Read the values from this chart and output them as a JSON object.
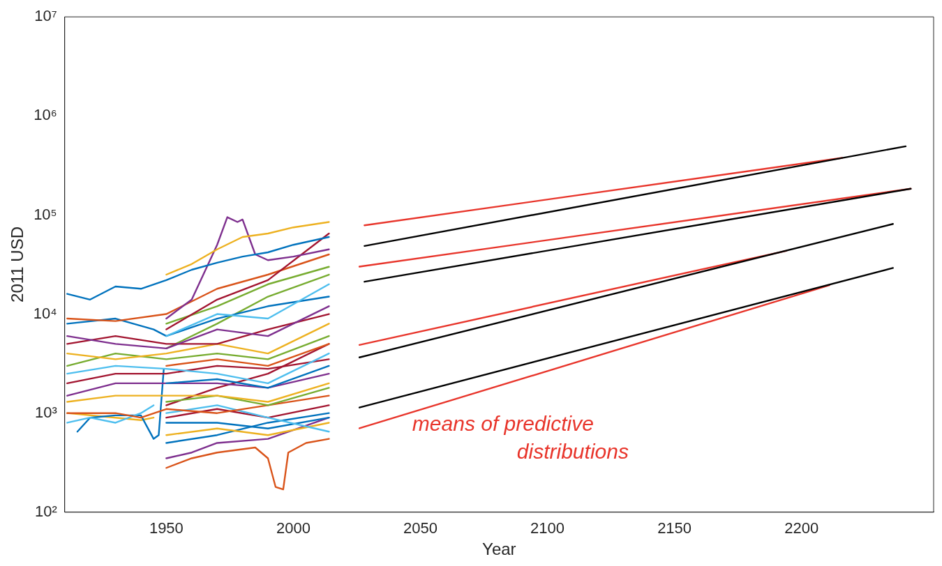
{
  "chart_data": {
    "type": "line",
    "xlabel": "Year",
    "ylabel": "2011 USD",
    "log": "y",
    "grid": false,
    "legend": false,
    "marker": "none",
    "line_style": "solid",
    "xlim": [
      1910,
      2252
    ],
    "xticks": [
      1950,
      2000,
      2050,
      2100,
      2150,
      2200
    ],
    "ylim": [
      100,
      10000000
    ],
    "yticks": [
      {
        "value": 100,
        "label": "10²"
      },
      {
        "value": 1000,
        "label": "10³"
      },
      {
        "value": 10000,
        "label": "10⁴"
      },
      {
        "value": 100000,
        "label": "10⁵"
      },
      {
        "value": 1000000,
        "label": "10⁶"
      },
      {
        "value": 10000000,
        "label": "10⁷"
      }
    ],
    "annotations": [
      "means of predictive distributions"
    ],
    "series": [
      {
        "color": "#0072bd",
        "x": [
          1911,
          1920,
          1930,
          1940,
          1950,
          1960,
          1970,
          1980,
          1990,
          2000,
          2014
        ],
        "values": [
          16000,
          14000,
          19000,
          18000,
          22000,
          28000,
          33000,
          38000,
          42000,
          50000,
          60000
        ]
      },
      {
        "color": "#edb120",
        "x": [
          1950,
          1960,
          1970,
          1980,
          1990,
          2000,
          2014
        ],
        "values": [
          25000,
          32000,
          45000,
          60000,
          65000,
          75000,
          85000
        ]
      },
      {
        "color": "#7e2f8e",
        "x": [
          1950,
          1960,
          1970,
          1974,
          1978,
          1980,
          1985,
          1990,
          2000,
          2014
        ],
        "values": [
          9000,
          14000,
          50000,
          95000,
          85000,
          90000,
          40000,
          35000,
          38000,
          45000
        ]
      },
      {
        "color": "#a2142f",
        "x": [
          1950,
          1970,
          1990,
          2014
        ],
        "values": [
          7000,
          14000,
          22000,
          65000
        ]
      },
      {
        "color": "#d95319",
        "x": [
          1911,
          1930,
          1950,
          1970,
          1990,
          2014
        ],
        "values": [
          9000,
          8500,
          10000,
          18000,
          25000,
          40000
        ]
      },
      {
        "color": "#77ac30",
        "x": [
          1950,
          1970,
          1990,
          2014
        ],
        "values": [
          8000,
          12000,
          20000,
          30000
        ]
      },
      {
        "color": "#4dbeee",
        "x": [
          1950,
          1970,
          1990,
          2014
        ],
        "values": [
          6000,
          10000,
          9000,
          20000
        ]
      },
      {
        "color": "#0072bd",
        "x": [
          1911,
          1930,
          1945,
          1950,
          1970,
          1990,
          2014
        ],
        "values": [
          8000,
          9000,
          7000,
          6000,
          9000,
          12000,
          15000
        ]
      },
      {
        "color": "#7e2f8e",
        "x": [
          1911,
          1930,
          1950,
          1970,
          1990,
          2014
        ],
        "values": [
          6000,
          5000,
          4500,
          7000,
          6000,
          12000
        ]
      },
      {
        "color": "#a2142f",
        "x": [
          1911,
          1930,
          1950,
          1970,
          1990,
          2014
        ],
        "values": [
          5000,
          6000,
          5000,
          5000,
          7000,
          10000
        ]
      },
      {
        "color": "#edb120",
        "x": [
          1911,
          1930,
          1950,
          1970,
          1990,
          2014
        ],
        "values": [
          4000,
          3500,
          4000,
          5000,
          4000,
          8000
        ]
      },
      {
        "color": "#77ac30",
        "x": [
          1911,
          1930,
          1950,
          1970,
          1990,
          2014
        ],
        "values": [
          3000,
          4000,
          3500,
          4000,
          3500,
          6000
        ]
      },
      {
        "color": "#d95319",
        "x": [
          1950,
          1970,
          1990,
          2014
        ],
        "values": [
          3000,
          3500,
          3000,
          5000
        ]
      },
      {
        "color": "#4dbeee",
        "x": [
          1911,
          1930,
          1950,
          1970,
          1990,
          2014
        ],
        "values": [
          2500,
          3000,
          2800,
          2500,
          2000,
          4000
        ]
      },
      {
        "color": "#a2142f",
        "x": [
          1911,
          1930,
          1950,
          1970,
          1990,
          2014
        ],
        "values": [
          2000,
          2500,
          2500,
          3000,
          2800,
          3500
        ]
      },
      {
        "color": "#0072bd",
        "x": [
          1950,
          1970,
          1990,
          2014
        ],
        "values": [
          2000,
          2200,
          1800,
          3000
        ]
      },
      {
        "color": "#7e2f8e",
        "x": [
          1911,
          1930,
          1950,
          1970,
          1990,
          2014
        ],
        "values": [
          1500,
          2000,
          2000,
          2000,
          1800,
          2500
        ]
      },
      {
        "color": "#edb120",
        "x": [
          1911,
          1930,
          1950,
          1970,
          1990,
          2014
        ],
        "values": [
          1300,
          1500,
          1500,
          1500,
          1300,
          2000
        ]
      },
      {
        "color": "#77ac30",
        "x": [
          1950,
          1970,
          1990,
          2014
        ],
        "values": [
          1300,
          1500,
          1200,
          1800
        ]
      },
      {
        "color": "#d95319",
        "x": [
          1911,
          1930,
          1940,
          1950,
          1970,
          1990,
          2014
        ],
        "values": [
          1000,
          1000,
          900,
          1100,
          1000,
          1200,
          1500
        ]
      },
      {
        "color": "#4dbeee",
        "x": [
          1911,
          1920,
          1930,
          1940,
          1945
        ],
        "values": [
          800,
          900,
          800,
          1000,
          1200
        ]
      },
      {
        "color": "#4dbeee",
        "x": [
          1950,
          1970,
          1990,
          2014
        ],
        "values": [
          1000,
          1200,
          900,
          650
        ]
      },
      {
        "color": "#0072bd",
        "x": [
          1915,
          1920,
          1930,
          1940,
          1945,
          1947,
          1949
        ],
        "values": [
          650,
          900,
          950,
          950,
          550,
          600,
          2800
        ]
      },
      {
        "color": "#edb120",
        "x": [
          1911,
          1930,
          1940,
          1945
        ],
        "values": [
          1000,
          900,
          850,
          900
        ]
      },
      {
        "color": "#a2142f",
        "x": [
          1950,
          1970,
          1990,
          2014
        ],
        "values": [
          900,
          1100,
          900,
          1200
        ]
      },
      {
        "color": "#0072bd",
        "x": [
          1950,
          1970,
          1990,
          2014
        ],
        "values": [
          800,
          800,
          700,
          900
        ]
      },
      {
        "color": "#edb120",
        "x": [
          1950,
          1970,
          1990,
          2014
        ],
        "values": [
          600,
          700,
          600,
          800
        ]
      },
      {
        "color": "#7e2f8e",
        "x": [
          1950,
          1960,
          1970,
          1990,
          2014
        ],
        "values": [
          350,
          400,
          500,
          550,
          900
        ]
      },
      {
        "color": "#d95319",
        "x": [
          1950,
          1960,
          1970,
          1985,
          1990,
          1993,
          1996,
          1998,
          2005,
          2014
        ],
        "values": [
          280,
          350,
          400,
          450,
          350,
          180,
          170,
          400,
          500,
          550
        ]
      },
      {
        "color": "#0072bd",
        "x": [
          1950,
          1970,
          1990,
          2014
        ],
        "values": [
          500,
          600,
          800,
          1000
        ]
      },
      {
        "color": "#77ac30",
        "x": [
          1950,
          1970,
          1990,
          2014
        ],
        "values": [
          4500,
          8000,
          15000,
          25000
        ]
      },
      {
        "color": "#a2142f",
        "x": [
          1950,
          1970,
          1990,
          2014
        ],
        "values": [
          1200,
          1800,
          2500,
          5000
        ]
      },
      {
        "color": "#000000",
        "x": [
          2028,
          2241
        ],
        "values": [
          48700,
          494000
        ]
      },
      {
        "color": "#000000",
        "x": [
          2028,
          2243
        ],
        "values": [
          21200,
          184000
        ]
      },
      {
        "color": "#000000",
        "x": [
          2026,
          2236
        ],
        "values": [
          3650,
          81300
        ]
      },
      {
        "color": "#000000",
        "x": [
          2026,
          2236
        ],
        "values": [
          1140,
          29200
        ]
      },
      {
        "color": "#e8352b",
        "x": [
          2028,
          2216
        ],
        "values": [
          78700,
          377000
        ]
      },
      {
        "color": "#e8352b",
        "x": [
          2026,
          2243
        ],
        "values": [
          30100,
          184000
        ]
      },
      {
        "color": "#e8352b",
        "x": [
          2026,
          2194
        ],
        "values": [
          4880,
          43500
        ]
      },
      {
        "color": "#e8352b",
        "x": [
          2026,
          2211
        ],
        "values": [
          703,
          19600
        ]
      }
    ]
  }
}
